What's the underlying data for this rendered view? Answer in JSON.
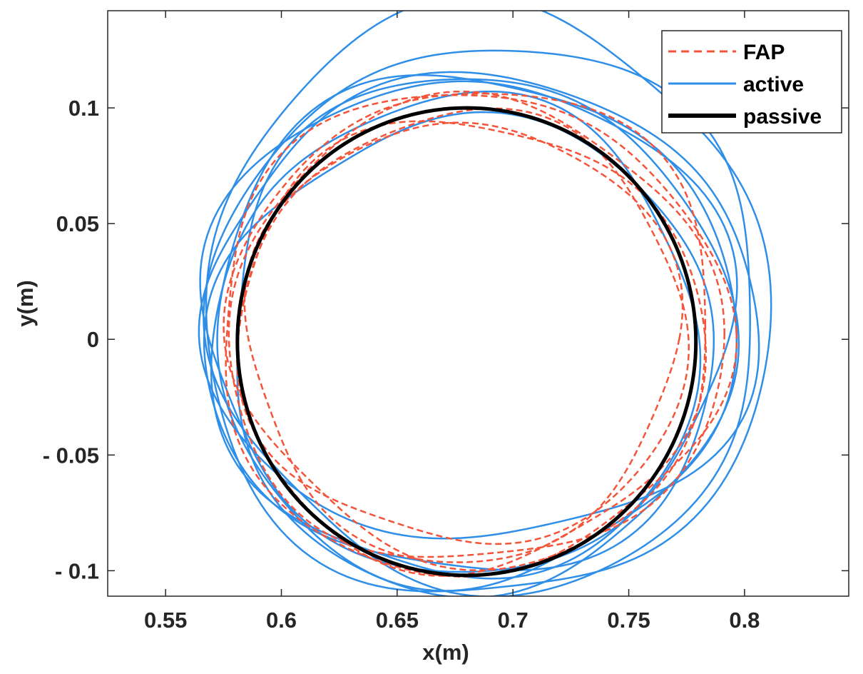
{
  "chart_data": {
    "type": "line",
    "title": "",
    "xlabel": "x(m)",
    "ylabel": "y(m)",
    "xlim": [
      0.525,
      0.845
    ],
    "ylim": [
      -0.111,
      0.142
    ],
    "grid": false,
    "legend_position": "top-right",
    "x_ticks": [
      0.55,
      0.6,
      0.65,
      0.7,
      0.75,
      0.8
    ],
    "x_tick_labels": [
      "0.55",
      "0.6",
      "0.65",
      "0.7",
      "0.75",
      "0.8"
    ],
    "y_ticks": [
      0.1,
      0.05,
      0,
      -0.05,
      -0.1
    ],
    "y_tick_labels": [
      "0.1",
      "0.05",
      "0",
      "- 0.05",
      "- 0.1"
    ],
    "series": [
      {
        "name": "FAP",
        "style": "dashed",
        "color": "#f4553a",
        "shape": "closed-loops",
        "loops": [
          {
            "cx": 0.68,
            "cy": -0.002,
            "rx": 0.101,
            "ry": 0.097
          },
          {
            "cx": 0.683,
            "cy": 0.002,
            "rx": 0.107,
            "ry": 0.1
          },
          {
            "cx": 0.679,
            "cy": 0.004,
            "rx": 0.097,
            "ry": 0.093
          },
          {
            "cx": 0.684,
            "cy": 0.006,
            "rx": 0.104,
            "ry": 0.103
          },
          {
            "cx": 0.678,
            "cy": 0.0,
            "rx": 0.093,
            "ry": 0.095
          },
          {
            "cx": 0.681,
            "cy": 0.003,
            "rx": 0.11,
            "ry": 0.104
          }
        ]
      },
      {
        "name": "active",
        "style": "solid",
        "color": "#2f8fe8",
        "shape": "closed-loops",
        "loops": [
          {
            "cx": 0.682,
            "cy": 0.005,
            "rx": 0.112,
            "ry": 0.11
          },
          {
            "cx": 0.688,
            "cy": 0.014,
            "rx": 0.122,
            "ry": 0.128
          },
          {
            "cx": 0.676,
            "cy": 0.0,
            "rx": 0.105,
            "ry": 0.104
          },
          {
            "cx": 0.69,
            "cy": 0.01,
            "rx": 0.118,
            "ry": 0.118
          },
          {
            "cx": 0.68,
            "cy": 0.007,
            "rx": 0.114,
            "ry": 0.106
          },
          {
            "cx": 0.684,
            "cy": 0.002,
            "rx": 0.108,
            "ry": 0.112
          },
          {
            "cx": 0.686,
            "cy": 0.012,
            "rx": 0.12,
            "ry": 0.1
          },
          {
            "cx": 0.679,
            "cy": -0.004,
            "rx": 0.11,
            "ry": 0.098
          }
        ]
      },
      {
        "name": "passive",
        "style": "solid-thick",
        "color": "#000000",
        "shape": "closed-loops",
        "loops": [
          {
            "cx": 0.68,
            "cy": -0.001,
            "rx": 0.099,
            "ry": 0.101
          }
        ]
      }
    ]
  },
  "legend": {
    "entries": [
      {
        "label": "FAP",
        "color": "#f4553a",
        "style": "dashed"
      },
      {
        "label": "active",
        "color": "#2f8fe8",
        "style": "solid"
      },
      {
        "label": "passive",
        "color": "#000000",
        "style": "solid-thick"
      }
    ]
  }
}
